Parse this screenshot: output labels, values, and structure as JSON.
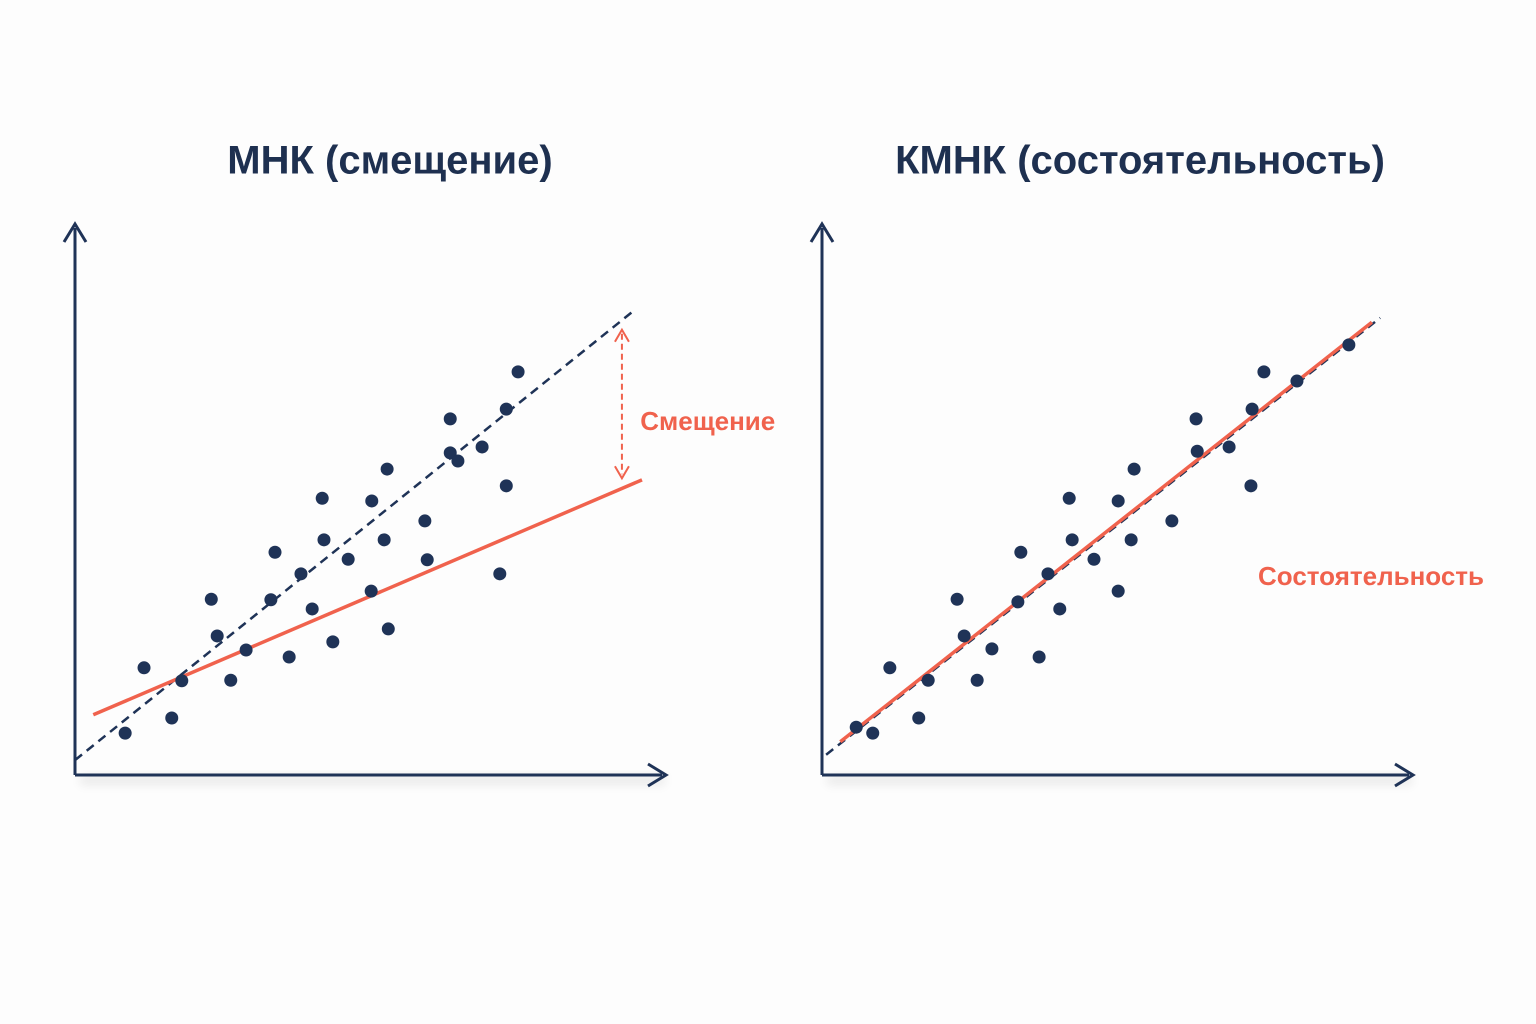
{
  "chart_data": [
    {
      "type": "scatter",
      "title": "МНК (смещение)",
      "xlim": [
        0,
        100
      ],
      "ylim": [
        0,
        100
      ],
      "color": "#1f3357",
      "x": [
        8.5,
        11.7,
        16.4,
        18.1,
        23.1,
        24.1,
        26.4,
        29.0,
        33.9,
        33.2,
        36.3,
        38.3,
        40.2,
        41.9,
        42.2,
        43.7,
        46.3,
        50.3,
        50.2,
        52.4,
        52.9,
        53.1,
        59.3,
        59.7,
        63.6,
        63.6,
        64.9,
        69.0,
        72.0,
        73.1,
        73.1,
        75.1
      ],
      "y": [
        5.9,
        18.0,
        8.7,
        15.6,
        30.7,
        23.9,
        15.7,
        21.3,
        39.4,
        30.6,
        20.0,
        35.4,
        28.9,
        49.4,
        41.7,
        22.8,
        38.1,
        48.9,
        32.2,
        41.7,
        54.8,
        25.2,
        45.2,
        38.0,
        64.1,
        57.8,
        56.3,
        58.9,
        35.4,
        51.7,
        65.9,
        72.8
      ],
      "lines": [
        {
          "x": [
            0,
            94.9
          ],
          "y": [
            0.9,
            84.3
          ],
          "color": "#1f3357",
          "style": "dashed"
        },
        {
          "x": [
            3.1,
            96.1
          ],
          "y": [
            9.3,
            52.8
          ],
          "color": "#f0624d",
          "style": "solid"
        }
      ],
      "arrow": {
        "x": 92.7,
        "y": [
          80.6,
          53.1
        ],
        "color": "#f0624d"
      },
      "annotation": {
        "text": "Смещение",
        "x": 95.8,
        "y": 63.3,
        "color": "#f0624d"
      }
    },
    {
      "type": "scatter",
      "title": "КМНК (состоятельность)",
      "xlim": [
        0,
        100
      ],
      "ylim": [
        0,
        100
      ],
      "color": "#1f3357",
      "x": [
        5.8,
        8.6,
        11.5,
        16.4,
        18.0,
        22.9,
        24.1,
        26.3,
        28.8,
        33.2,
        33.7,
        36.8,
        38.3,
        40.3,
        41.9,
        42.4,
        46.1,
        50.2,
        50.2,
        52.4,
        52.9,
        59.3,
        63.4,
        63.6,
        69.0,
        72.7,
        72.9,
        74.9,
        80.5,
        89.3
      ],
      "y": [
        7.0,
        5.9,
        18.0,
        8.7,
        15.7,
        30.7,
        23.9,
        15.7,
        21.5,
        30.2,
        39.4,
        20.0,
        35.4,
        28.9,
        49.4,
        41.7,
        38.1,
        48.9,
        32.2,
        41.7,
        54.8,
        45.2,
        64.1,
        58.1,
        58.9,
        51.7,
        65.9,
        72.8,
        71.1,
        77.8
      ],
      "lines": [
        {
          "x": [
            0.7,
            94.6
          ],
          "y": [
            1.9,
            82.8
          ],
          "color": "#1f3357",
          "style": "dashed"
        },
        {
          "x": [
            3.1,
            93.2
          ],
          "y": [
            4.3,
            82.0
          ],
          "color": "#f0624d",
          "style": "solid"
        }
      ],
      "annotation": {
        "text": "Состоятельность",
        "x": 73.9,
        "y": 34.6,
        "color": "#f0624d"
      }
    }
  ]
}
